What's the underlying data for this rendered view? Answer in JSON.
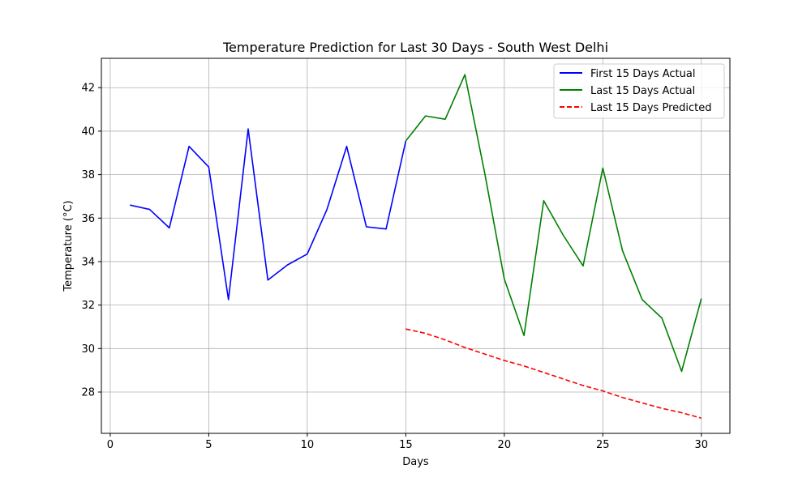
{
  "chart_data": {
    "type": "line",
    "title": "Temperature Prediction for Last 30 Days - South West Delhi",
    "xlabel": "Days",
    "ylabel": "Temperature (°C)",
    "xlim": [
      -0.45,
      31.45
    ],
    "ylim": [
      26.1,
      43.35
    ],
    "xticks": [
      0,
      5,
      10,
      15,
      20,
      25,
      30
    ],
    "yticks": [
      28,
      30,
      32,
      34,
      36,
      38,
      40,
      42
    ],
    "grid": true,
    "legend_position": "top-right",
    "series": [
      {
        "name": "First 15 Days Actual",
        "color": "#0000ff",
        "style": "solid",
        "x": [
          1,
          2,
          3,
          4,
          5,
          6,
          7,
          8,
          9,
          10,
          11,
          12,
          13,
          14,
          15
        ],
        "values": [
          36.6,
          36.4,
          35.55,
          39.3,
          38.35,
          32.25,
          40.1,
          33.15,
          33.85,
          34.35,
          36.4,
          39.3,
          35.6,
          35.5,
          39.55
        ]
      },
      {
        "name": "Last 15 Days Actual",
        "color": "#008000",
        "style": "solid",
        "x": [
          15,
          16,
          17,
          18,
          19,
          20,
          21,
          22,
          23,
          24,
          25,
          26,
          27,
          28,
          29,
          30
        ],
        "values": [
          39.55,
          40.7,
          40.55,
          42.6,
          38.1,
          33.2,
          30.6,
          36.8,
          35.2,
          33.8,
          38.3,
          34.5,
          32.25,
          31.4,
          28.95,
          32.3
        ]
      },
      {
        "name": "Last 15 Days Predicted",
        "color": "#ff0000",
        "style": "dashed",
        "x": [
          15,
          16,
          17,
          18,
          19,
          20,
          21,
          22,
          23,
          24,
          25,
          26,
          27,
          28,
          29,
          30
        ],
        "values": [
          30.9,
          30.7,
          30.4,
          30.05,
          29.75,
          29.45,
          29.2,
          28.9,
          28.6,
          28.3,
          28.05,
          27.75,
          27.5,
          27.25,
          27.05,
          26.8
        ]
      }
    ]
  }
}
